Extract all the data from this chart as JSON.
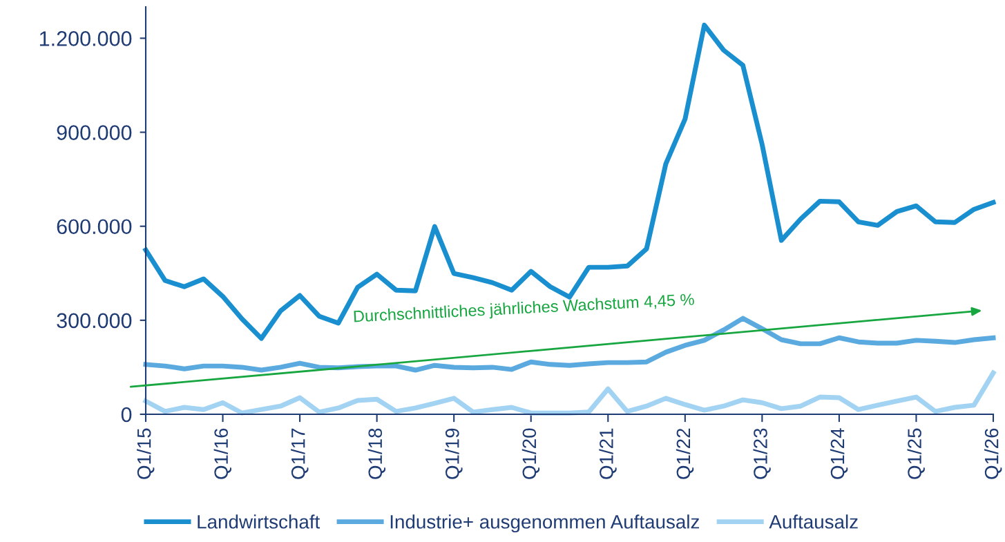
{
  "chart_data": {
    "type": "line",
    "categories": [
      "Q1/15",
      null,
      null,
      null,
      "Q1/16",
      null,
      null,
      null,
      "Q1/17",
      null,
      null,
      null,
      "Q1/18",
      null,
      null,
      null,
      "Q1/19",
      null,
      null,
      null,
      "Q1/20",
      null,
      null,
      null,
      "Q1/21",
      null,
      null,
      null,
      "Q1/22",
      null,
      null,
      null,
      "Q1/23",
      null,
      null,
      null,
      "Q1/24",
      null,
      null,
      null,
      "Q1/25",
      null,
      null,
      null,
      "Q1/26"
    ],
    "series": [
      {
        "name": "Landwirtschaft",
        "color": "#1a8fd0",
        "values": [
          524000,
          427000,
          407000,
          432000,
          376000,
          304000,
          242000,
          330000,
          379000,
          313000,
          291000,
          405000,
          447000,
          396000,
          394000,
          599000,
          449000,
          436000,
          420000,
          396000,
          456000,
          407000,
          374000,
          469000,
          469000,
          473000,
          528000,
          799000,
          942000,
          1242000,
          1162000,
          1114000,
          861000,
          555000,
          623000,
          680000,
          678000,
          614000,
          603000,
          647000,
          665000,
          614000,
          612000,
          654000,
          676000
        ]
      },
      {
        "name": "Industrie+ ausgenommen Auftausalz",
        "color": "#5aaae0",
        "values": [
          159000,
          154000,
          145000,
          154000,
          154000,
          150000,
          141000,
          150000,
          163000,
          150000,
          148000,
          152000,
          154000,
          154000,
          141000,
          156000,
          150000,
          148000,
          150000,
          143000,
          167000,
          159000,
          156000,
          161000,
          165000,
          165000,
          167000,
          198000,
          220000,
          236000,
          269000,
          306000,
          273000,
          238000,
          225000,
          225000,
          244000,
          231000,
          227000,
          227000,
          236000,
          233000,
          229000,
          238000,
          244000
        ]
      },
      {
        "name": "Auftausalz",
        "color": "#a3d3f3",
        "values": [
          42000,
          9000,
          22000,
          15000,
          37000,
          4000,
          15000,
          26000,
          53000,
          7000,
          20000,
          44000,
          48000,
          9000,
          20000,
          35000,
          51000,
          7000,
          15000,
          22000,
          4000,
          4000,
          4000,
          7000,
          81000,
          9000,
          26000,
          51000,
          31000,
          13000,
          26000,
          46000,
          37000,
          18000,
          26000,
          55000,
          53000,
          15000,
          29000,
          42000,
          55000,
          9000,
          22000,
          29000,
          132000
        ]
      }
    ],
    "ylim": [
      0,
      1300000
    ],
    "yticks": [
      0,
      {
        "value": 300000,
        "label": "300.000"
      },
      {
        "value": 600000,
        "label": "600.000"
      },
      {
        "value": 900000,
        "label": "900.000"
      },
      {
        "value": 1200000,
        "label": "1.200.000"
      }
    ],
    "annotations": [
      "Durchschnittliches jährliches Wachstum 4,45 %"
    ],
    "grid": false,
    "legend": "bottom",
    "marker": "none",
    "line_style": "solid"
  }
}
